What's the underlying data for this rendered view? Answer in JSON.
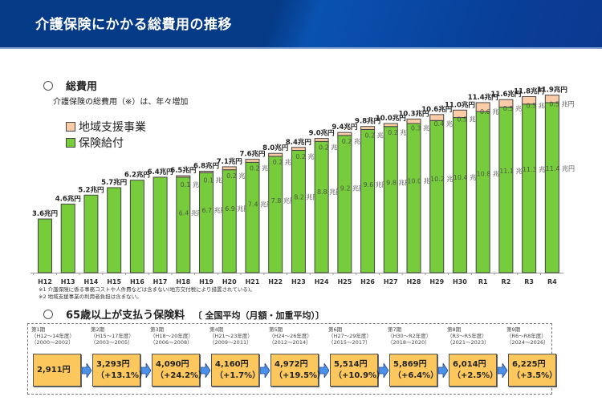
{
  "header": {
    "title": "介護保険にかかる総費用の推移"
  },
  "section1": {
    "heading": "総費用",
    "subtitle": "介護保険の総費用（※）は、年々増加"
  },
  "legend": [
    {
      "label": "地域支援事業",
      "color": "#fccca6"
    },
    {
      "label": "保険給付",
      "color": "#77cc3c"
    }
  ],
  "notes": [
    "※1  介護保険に係る事務コストや人件費などは含まない(地方交付税により措置されている)。",
    "※2  地域支援事業の利用者負担は含まない。"
  ],
  "chart_data": {
    "type": "bar",
    "stacked": true,
    "title": "介護保険にかかる総費用の推移",
    "xlabel": "",
    "ylabel": "",
    "unit": "兆円",
    "categories": [
      "H12",
      "H13",
      "H14",
      "H15",
      "H16",
      "H17",
      "H18",
      "H19",
      "H20",
      "H21",
      "H22",
      "H23",
      "H24",
      "H25",
      "H26",
      "H27",
      "H28",
      "H29",
      "H30",
      "R1",
      "R2",
      "R3",
      "R4"
    ],
    "totals": [
      3.6,
      4.6,
      5.2,
      5.7,
      6.2,
      6.4,
      6.5,
      6.8,
      7.1,
      7.6,
      8.0,
      8.4,
      9.0,
      9.4,
      9.8,
      10.0,
      10.3,
      10.6,
      11.0,
      11.4,
      11.6,
      11.8,
      11.9
    ],
    "total_labels": [
      "3.6兆円",
      "4.6兆円",
      "5.2兆円",
      "5.7兆円",
      "6.2兆円",
      "6.4兆円",
      "6.5兆円",
      "6.8兆円",
      "7.1兆円",
      "7.6兆円",
      "8.0兆円",
      "8.4兆円",
      "9.0兆円",
      "9.4兆円",
      "9.8兆円",
      "10.0兆円",
      "10.3兆円",
      "10.6兆円",
      "11.0兆円",
      "11.4兆円",
      "11.6兆円",
      "11.8兆円",
      "11.9兆円"
    ],
    "series": [
      {
        "name": "保険給付",
        "color": "#77cc3c",
        "values": [
          3.6,
          4.6,
          5.2,
          5.7,
          6.2,
          6.4,
          6.4,
          6.7,
          6.9,
          7.4,
          7.8,
          8.2,
          8.8,
          9.2,
          9.6,
          9.8,
          10.0,
          10.2,
          10.4,
          10.8,
          11.1,
          11.3,
          11.4
        ],
        "labels": [
          null,
          null,
          null,
          null,
          null,
          null,
          "6.4 兆円",
          "6.7 兆円",
          "6.9 兆円",
          "7.4 兆円",
          "7.8 兆円",
          "8.2 兆円",
          "8.8 兆円",
          "9.2 兆円",
          "9.6 兆円",
          "9.8 兆円",
          "10.0 兆円",
          "10.2 兆円",
          "10.4 兆円",
          "10.8 兆円",
          "11.1 兆円",
          "11.3 兆円",
          "11.4 兆円"
        ]
      },
      {
        "name": "地域支援事業",
        "color": "#fccca6",
        "values": [
          0,
          0,
          0,
          0,
          0,
          0,
          0.1,
          0.1,
          0.2,
          0.2,
          0.2,
          0.2,
          0.2,
          0.2,
          0.2,
          0.2,
          0.3,
          0.4,
          0.5,
          0.6,
          0.5,
          0.5,
          0.5
        ],
        "labels": [
          null,
          null,
          null,
          null,
          null,
          null,
          "0.1 兆円",
          "0.1 兆円",
          "0.2 兆円",
          "0.2 兆円",
          "0.2 兆円",
          "0.2 兆円",
          "0.2 兆円",
          "0.2 兆円",
          "0.2 兆円",
          "0.2 兆円",
          "0.3 兆円",
          "0.4 兆円",
          "0.5 兆円",
          "0.6 兆円",
          "0.5 兆円",
          "0.5 兆円",
          "0.5 兆円"
        ]
      }
    ],
    "ylim": [
      0,
      12
    ],
    "grid": false,
    "legend_position": "top-left"
  },
  "section2": {
    "heading": "65歳以上が支払う保険料",
    "heading_suffix": "〔 全国平均（月額・加重平均）〕",
    "periods": [
      {
        "term": "第1期",
        "years_h": "（H12～14年度）",
        "years": "（2000～2002）",
        "amount": "2,911円",
        "change": ""
      },
      {
        "term": "第2期",
        "years_h": "（H15～17年度）",
        "years": "（2003～2005）",
        "amount": "3,293円",
        "change": "（+13.1%）"
      },
      {
        "term": "第3期",
        "years_h": "（H18～20年度）",
        "years": "（2006～2008）",
        "amount": "4,090円",
        "change": "（+24.2%）"
      },
      {
        "term": "第4期",
        "years_h": "（H21～23年度）",
        "years": "（2009～2011）",
        "amount": "4,160円",
        "change": "（+1.7%）"
      },
      {
        "term": "第5期",
        "years_h": "（H24～26年度）",
        "years": "（2012～2014）",
        "amount": "4,972円",
        "change": "（+19.5%）"
      },
      {
        "term": "第6期",
        "years_h": "（H27～29年度）",
        "years": "（2015～2017）",
        "amount": "5,514円",
        "change": "（+10.9%）"
      },
      {
        "term": "第7期",
        "years_h": "（H30～R2年度）",
        "years": "（2018～2020）",
        "amount": "5,869円",
        "change": "（+6.4%）"
      },
      {
        "term": "第8期",
        "years_h": "（R3～R5年度）",
        "years": "（2021～2023）",
        "amount": "6,014円",
        "change": "（+2.5%）"
      },
      {
        "term": "第9期",
        "years_h": "（R6～R8年度）",
        "years": "（2024～2026）",
        "amount": "6,225円",
        "change": "（+3.5%）"
      }
    ]
  }
}
